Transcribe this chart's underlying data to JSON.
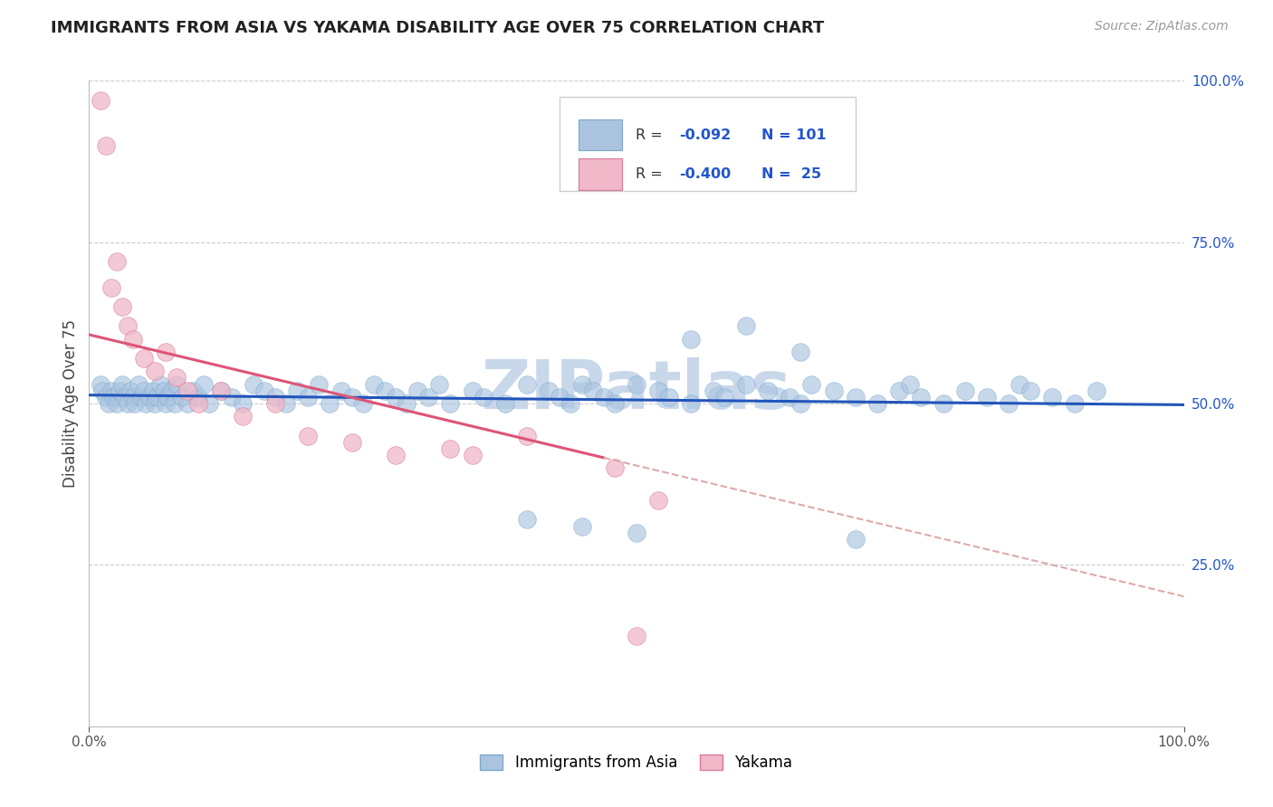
{
  "title": "IMMIGRANTS FROM ASIA VS YAKAMA DISABILITY AGE OVER 75 CORRELATION CHART",
  "source_text": "Source: ZipAtlas.com",
  "ylabel": "Disability Age Over 75",
  "xlim": [
    0,
    100
  ],
  "ylim": [
    0,
    100
  ],
  "legend_r_color": "#2255cc",
  "watermark": "ZIPatlas",
  "watermark_color": "#c8d8ea",
  "background_color": "#ffffff",
  "grid_color": "#cccccc",
  "blue_scatter_color": "#aac4e0",
  "blue_scatter_edge": "#7aa8cc",
  "pink_scatter_color": "#f0b8c8",
  "pink_scatter_edge": "#d87898",
  "blue_line_color": "#2255bb",
  "pink_line_color": "#dd5577",
  "pink_line_dash_color": "#ddaaaa",
  "blue_N": 101,
  "pink_N": 25,
  "blue_R": -0.092,
  "pink_R": -0.4,
  "blue_scatter_x": [
    1.0,
    1.2,
    1.5,
    1.8,
    2.0,
    2.2,
    2.5,
    2.8,
    3.0,
    3.2,
    3.5,
    3.8,
    4.0,
    4.2,
    4.5,
    4.8,
    5.0,
    5.2,
    5.5,
    5.8,
    6.0,
    6.2,
    6.5,
    6.8,
    7.0,
    7.2,
    7.5,
    7.8,
    8.0,
    8.5,
    9.0,
    9.5,
    10.0,
    10.5,
    11.0,
    12.0,
    13.0,
    14.0,
    15.0,
    16.0,
    17.0,
    18.0,
    19.0,
    20.0,
    21.0,
    22.0,
    23.0,
    24.0,
    25.0,
    26.0,
    27.0,
    28.0,
    29.0,
    30.0,
    31.0,
    32.0,
    33.0,
    35.0,
    36.0,
    38.0,
    40.0,
    42.0,
    43.0,
    44.0,
    45.0,
    46.0,
    47.0,
    48.0,
    50.0,
    52.0,
    53.0,
    55.0,
    57.0,
    58.0,
    60.0,
    62.0,
    64.0,
    65.0,
    66.0,
    68.0,
    70.0,
    72.0,
    74.0,
    75.0,
    76.0,
    78.0,
    80.0,
    82.0,
    84.0,
    85.0,
    86.0,
    88.0,
    90.0,
    92.0,
    55.0,
    60.0,
    65.0,
    70.0,
    50.0,
    45.0,
    40.0
  ],
  "blue_scatter_y": [
    53.0,
    52.0,
    51.0,
    50.0,
    52.0,
    51.0,
    50.0,
    52.0,
    53.0,
    51.0,
    50.0,
    52.0,
    51.0,
    50.0,
    53.0,
    51.0,
    52.0,
    50.0,
    51.0,
    52.0,
    50.0,
    51.0,
    53.0,
    52.0,
    50.0,
    51.0,
    52.0,
    50.0,
    53.0,
    51.0,
    50.0,
    52.0,
    51.0,
    53.0,
    50.0,
    52.0,
    51.0,
    50.0,
    53.0,
    52.0,
    51.0,
    50.0,
    52.0,
    51.0,
    53.0,
    50.0,
    52.0,
    51.0,
    50.0,
    53.0,
    52.0,
    51.0,
    50.0,
    52.0,
    51.0,
    53.0,
    50.0,
    52.0,
    51.0,
    50.0,
    53.0,
    52.0,
    51.0,
    50.0,
    53.0,
    52.0,
    51.0,
    50.0,
    53.0,
    52.0,
    51.0,
    50.0,
    52.0,
    51.0,
    53.0,
    52.0,
    51.0,
    50.0,
    53.0,
    52.0,
    51.0,
    50.0,
    52.0,
    53.0,
    51.0,
    50.0,
    52.0,
    51.0,
    50.0,
    53.0,
    52.0,
    51.0,
    50.0,
    52.0,
    60.0,
    62.0,
    58.0,
    29.0,
    30.0,
    31.0,
    32.0
  ],
  "pink_scatter_x": [
    1.0,
    1.5,
    2.0,
    2.5,
    3.0,
    3.5,
    4.0,
    5.0,
    6.0,
    7.0,
    8.0,
    9.0,
    10.0,
    12.0,
    14.0,
    17.0,
    20.0,
    24.0,
    28.0,
    33.0,
    35.0,
    40.0,
    48.0,
    52.0,
    50.0
  ],
  "pink_scatter_y": [
    97.0,
    90.0,
    68.0,
    72.0,
    65.0,
    62.0,
    60.0,
    57.0,
    55.0,
    58.0,
    54.0,
    52.0,
    50.0,
    52.0,
    48.0,
    50.0,
    45.0,
    44.0,
    42.0,
    43.0,
    42.0,
    45.0,
    40.0,
    35.0,
    14.0
  ]
}
